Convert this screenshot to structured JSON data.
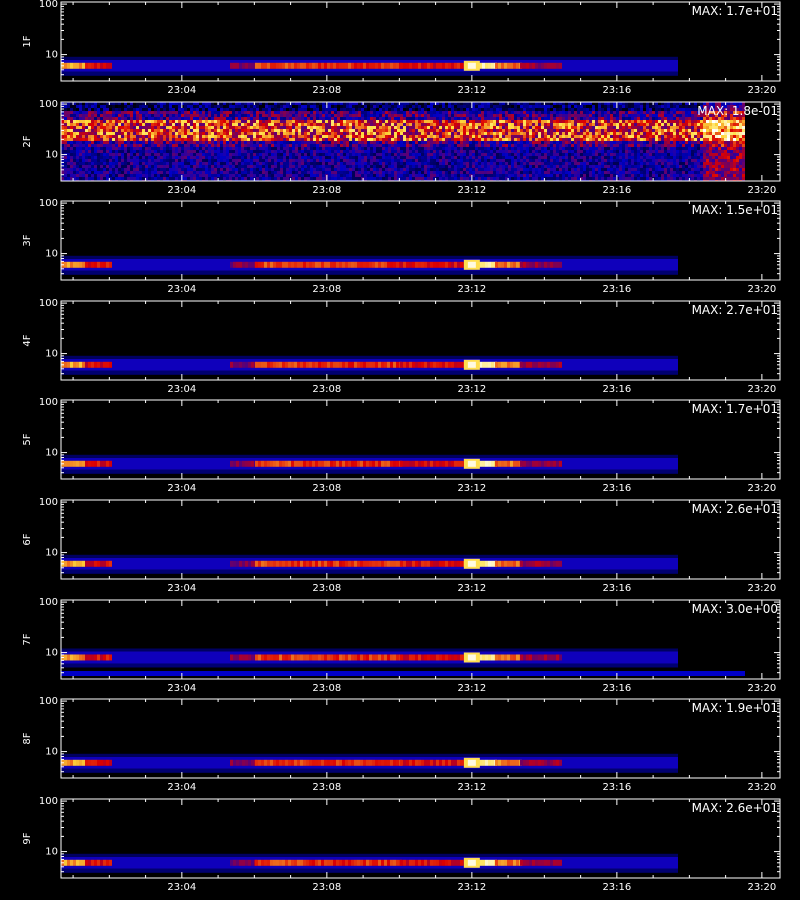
{
  "chart_data": {
    "type": "heatmap",
    "x_ticks": [
      "23:04",
      "23:08",
      "23:12",
      "23:16",
      "23:20"
    ],
    "x_range": [
      "23:00:40",
      "23:20:30"
    ],
    "y_scale": "log",
    "y_ticks": [
      "10",
      "100"
    ],
    "y_range": [
      3,
      110
    ],
    "colormap": "black-blue-red-yellow-white",
    "xlabel": "",
    "panels": [
      {
        "label": "1F",
        "max_label": "MAX: 1.7e+01",
        "max": 17.0,
        "band": 6,
        "noisy": false
      },
      {
        "label": "2F",
        "max_label": "MAX: 1.8e-01",
        "max": 0.18,
        "band": 30,
        "noisy": true
      },
      {
        "label": "3F",
        "max_label": "MAX: 1.5e+01",
        "max": 15.0,
        "band": 6,
        "noisy": false
      },
      {
        "label": "4F",
        "max_label": "MAX: 2.7e+01",
        "max": 27.0,
        "band": 6,
        "noisy": false
      },
      {
        "label": "5F",
        "max_label": "MAX: 1.7e+01",
        "max": 17.0,
        "band": 6,
        "noisy": false
      },
      {
        "label": "6F",
        "max_label": "MAX: 2.6e+01",
        "max": 26.0,
        "band": 6,
        "noisy": false
      },
      {
        "label": "7F",
        "max_label": "MAX: 3.0e+00",
        "max": 3.0,
        "band": 8,
        "noisy": false
      },
      {
        "label": "8F",
        "max_label": "MAX: 1.9e+01",
        "max": 19.0,
        "band": 6,
        "noisy": false
      },
      {
        "label": "9F",
        "max_label": "MAX: 2.6e+01",
        "max": 26.0,
        "band": 6,
        "noisy": false
      }
    ]
  },
  "colors": {
    "background": "#000000",
    "axes": "#ffffff",
    "low": "#0000c8",
    "mid": "#e00000",
    "high": "#ffff60",
    "peak": "#ffffff"
  }
}
